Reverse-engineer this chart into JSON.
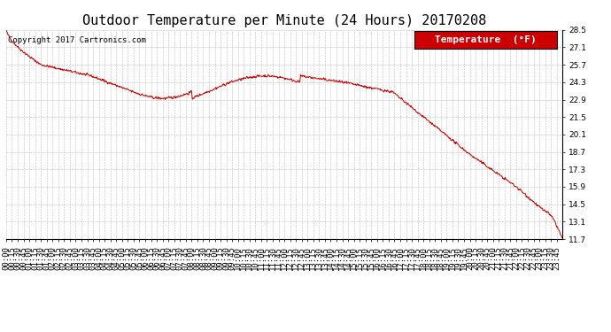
{
  "title": "Outdoor Temperature per Minute (24 Hours) 20170208",
  "copyright_text": "Copyright 2017 Cartronics.com",
  "legend_label": "Temperature  (°F)",
  "line_color": "#cc0000",
  "background_color": "#ffffff",
  "grid_color": "#bbbbbb",
  "ylim": [
    11.7,
    28.5
  ],
  "yticks": [
    11.7,
    13.1,
    14.5,
    15.9,
    17.3,
    18.7,
    20.1,
    21.5,
    22.9,
    24.3,
    25.7,
    27.1,
    28.5
  ],
  "title_fontsize": 11,
  "axis_fontsize": 6.5,
  "copyright_fontsize": 6.5,
  "legend_fontsize": 8
}
